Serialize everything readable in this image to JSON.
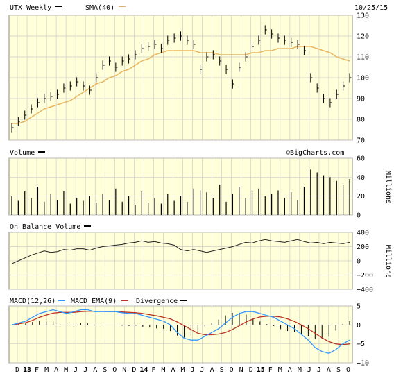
{
  "header": {
    "symbol_label": "UTX Weekly",
    "sma_label": "SMA(40)",
    "date": "10/25/15"
  },
  "volume_panel": {
    "label": "Volume",
    "watermark": "©BigCharts.com",
    "units": "Millions"
  },
  "obv_panel": {
    "label": "On Balance Volume",
    "units": "Millions"
  },
  "macd_panel": {
    "macd_label": "MACD(12,26)",
    "ema_label": "MACD EMA(9)",
    "div_label": "Divergence"
  },
  "x_axis": {
    "labels": [
      "D",
      "13",
      "F",
      "M",
      "A",
      "M",
      "J",
      "J",
      "A",
      "S",
      "O",
      "N",
      "D",
      "14",
      "F",
      "M",
      "A",
      "M",
      "J",
      "J",
      "A",
      "S",
      "O",
      "N",
      "D",
      "15",
      "F",
      "M",
      "A",
      "M",
      "J",
      "J",
      "A",
      "S",
      "O"
    ]
  },
  "colors": {
    "panel_bg": "#ffffd9",
    "grid": "#cccccc",
    "price": "#000000",
    "sma": "#e8b765",
    "macd": "#3399ff",
    "ema": "#bb3322",
    "histogram": "#000000"
  },
  "chart_data": [
    {
      "type": "line",
      "title": "UTX Weekly",
      "ylim": [
        70,
        130
      ],
      "yticks": [
        70,
        80,
        90,
        100,
        110,
        120,
        130
      ],
      "series": [
        {
          "name": "UTX Weekly",
          "values": [
            76,
            79,
            82,
            85,
            88,
            90,
            91,
            92,
            95,
            96,
            98,
            96,
            94,
            100,
            106,
            108,
            105,
            108,
            109,
            111,
            114,
            115,
            116,
            114,
            118,
            119,
            120,
            118,
            116,
            104,
            110,
            111,
            108,
            104,
            97,
            105,
            110,
            115,
            118,
            123,
            121,
            119,
            118,
            117,
            116,
            113,
            100,
            95,
            90,
            88,
            92,
            96,
            100
          ]
        },
        {
          "name": "SMA(40)",
          "values": [
            78,
            78,
            79,
            81,
            83,
            85,
            86,
            87,
            88,
            89,
            91,
            93,
            95,
            97,
            98,
            100,
            101,
            103,
            104,
            106,
            108,
            109,
            111,
            112,
            113,
            113,
            113,
            113,
            113,
            112,
            112,
            112,
            111,
            111,
            111,
            111,
            111,
            112,
            112,
            113,
            113,
            114,
            114,
            114,
            115,
            115,
            115,
            114,
            113,
            112,
            110,
            109,
            108
          ]
        }
      ]
    },
    {
      "type": "bar",
      "title": "Volume",
      "ylabel": "Millions",
      "ylim": [
        0,
        60
      ],
      "yticks": [
        0,
        20,
        40,
        60
      ],
      "series": [
        {
          "name": "Volume",
          "values": [
            20,
            15,
            25,
            18,
            30,
            14,
            22,
            16,
            25,
            12,
            18,
            15,
            20,
            13,
            22,
            16,
            28,
            14,
            20,
            11,
            25,
            13,
            18,
            12,
            22,
            15,
            20,
            14,
            28,
            26,
            24,
            18,
            32,
            14,
            22,
            30,
            18,
            25,
            28,
            20,
            22,
            26,
            18,
            24,
            16,
            30,
            48,
            45,
            42,
            40,
            36,
            32,
            38
          ]
        }
      ]
    },
    {
      "type": "line",
      "title": "On Balance Volume",
      "ylabel": "Millions",
      "ylim": [
        -400,
        400
      ],
      "yticks": [
        -400,
        -200,
        0,
        200,
        400
      ],
      "series": [
        {
          "name": "On Balance Volume",
          "values": [
            -40,
            0,
            40,
            80,
            110,
            140,
            120,
            130,
            160,
            150,
            170,
            170,
            150,
            180,
            200,
            210,
            220,
            230,
            250,
            260,
            280,
            260,
            270,
            250,
            240,
            220,
            160,
            140,
            160,
            140,
            120,
            140,
            160,
            180,
            200,
            230,
            260,
            250,
            280,
            300,
            280,
            270,
            260,
            280,
            300,
            270,
            250,
            260,
            240,
            260,
            250,
            240,
            260
          ]
        }
      ]
    },
    {
      "type": "line",
      "title": "MACD(12,26)",
      "ylim": [
        -10,
        5
      ],
      "yticks": [
        -10,
        -5,
        0,
        5
      ],
      "series": [
        {
          "name": "MACD(12,26)",
          "values": [
            0,
            0.5,
            1,
            2,
            3,
            3.5,
            4,
            3.5,
            3,
            3.5,
            4,
            4,
            3.5,
            3.5,
            3.5,
            3.5,
            3.2,
            3,
            3,
            2.5,
            2,
            1.5,
            1,
            0,
            -2,
            -3.5,
            -4,
            -4,
            -3,
            -2,
            -1,
            0.5,
            2,
            3,
            3.5,
            3.5,
            3,
            2.5,
            2,
            1,
            0,
            -1,
            -2.5,
            -4,
            -6,
            -7,
            -7.5,
            -6.5,
            -5,
            -4
          ]
        },
        {
          "name": "MACD EMA(9)",
          "values": [
            0,
            0.3,
            0.6,
            1.2,
            2,
            2.6,
            3.1,
            3.3,
            3.3,
            3.3,
            3.5,
            3.6,
            3.6,
            3.6,
            3.5,
            3.5,
            3.4,
            3.3,
            3.2,
            3,
            2.7,
            2.4,
            2,
            1.6,
            0.8,
            -0.2,
            -1.2,
            -2.2,
            -2.6,
            -2.6,
            -2.4,
            -2,
            -1.2,
            -0.2,
            0.8,
            1.6,
            2.1,
            2.3,
            2.3,
            2.1,
            1.6,
            0.9,
            0,
            -1,
            -2.2,
            -3.4,
            -4.4,
            -5,
            -5.2,
            -5
          ]
        },
        {
          "name": "Divergence",
          "values": [
            0,
            0.2,
            0.4,
            0.8,
            1,
            0.9,
            0.9,
            0.2,
            -0.3,
            0.2,
            0.5,
            0.4,
            -0.1,
            -0.1,
            0,
            0,
            -0.2,
            -0.3,
            -0.2,
            -0.5,
            -0.7,
            -0.9,
            -1,
            -1.6,
            -2.8,
            -3.3,
            -2.8,
            -1.8,
            -0.4,
            0.6,
            1.4,
            2.5,
            3.2,
            3.2,
            2.7,
            1.9,
            0.9,
            0.2,
            -0.3,
            -1.1,
            -1.6,
            -1.9,
            -2.5,
            -3,
            -3.8,
            -3.6,
            -3.1,
            -1.5,
            0.2,
            1
          ]
        }
      ]
    }
  ]
}
